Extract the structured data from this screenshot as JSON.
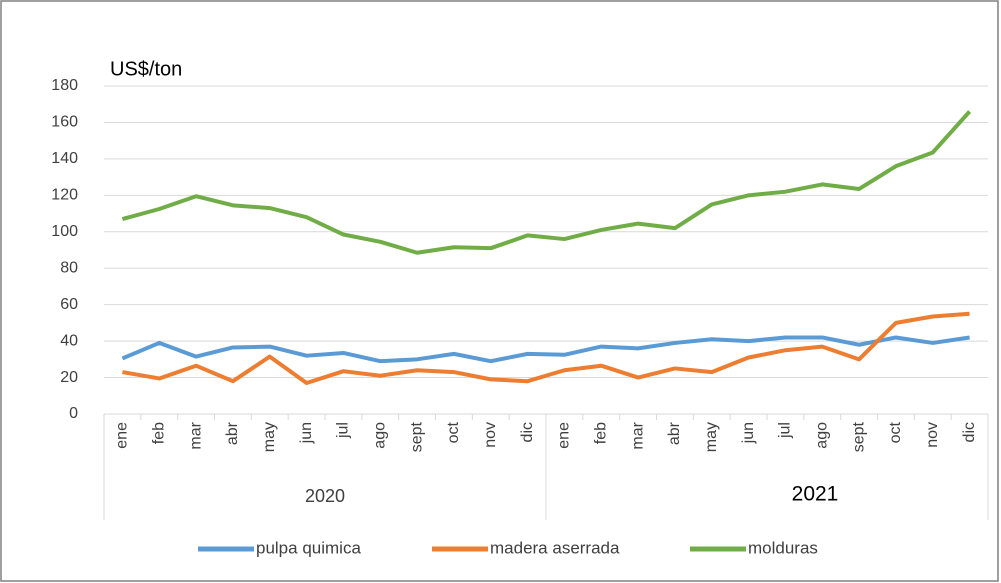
{
  "chart_data": {
    "type": "line",
    "y_axis_label": "US$/ton",
    "categories": [
      "ene",
      "feb",
      "mar",
      "abr",
      "may",
      "jun",
      "jul",
      "ago",
      "sept",
      "oct",
      "nov",
      "dic",
      "ene",
      "feb",
      "mar",
      "abr",
      "may",
      "jun",
      "jul",
      "ago",
      "sept",
      "oct",
      "nov",
      "dic"
    ],
    "year_labels": [
      "2020",
      "2021"
    ],
    "series": [
      {
        "name": "pulpa quimica",
        "color": "#5b9bd5",
        "values": [
          30.5,
          39,
          31.5,
          36.5,
          37,
          32,
          33.5,
          29,
          30,
          33,
          29,
          33,
          32.5,
          37,
          36,
          39,
          41,
          40,
          42,
          42,
          38,
          42,
          39,
          42
        ]
      },
      {
        "name": "madera aserrada",
        "color": "#ed7d31",
        "values": [
          23,
          19.5,
          26.5,
          18,
          31.5,
          17,
          23.5,
          21,
          24,
          23,
          19,
          18,
          24,
          26.5,
          20,
          25,
          23,
          31,
          35,
          37,
          30,
          50,
          53.5,
          55
        ]
      },
      {
        "name": "molduras",
        "color": "#70ad47",
        "values": [
          107,
          112.5,
          119.5,
          114.5,
          113,
          108,
          98.5,
          94.5,
          88.5,
          91.5,
          91,
          98,
          96,
          101,
          104.5,
          102,
          115,
          120,
          122,
          126,
          123.5,
          136,
          143.5,
          166
        ]
      }
    ],
    "ylim": [
      0,
      180
    ],
    "yticks": [
      0,
      20,
      40,
      60,
      80,
      100,
      120,
      140,
      160,
      180
    ],
    "grid": true,
    "legend": "bottom"
  }
}
